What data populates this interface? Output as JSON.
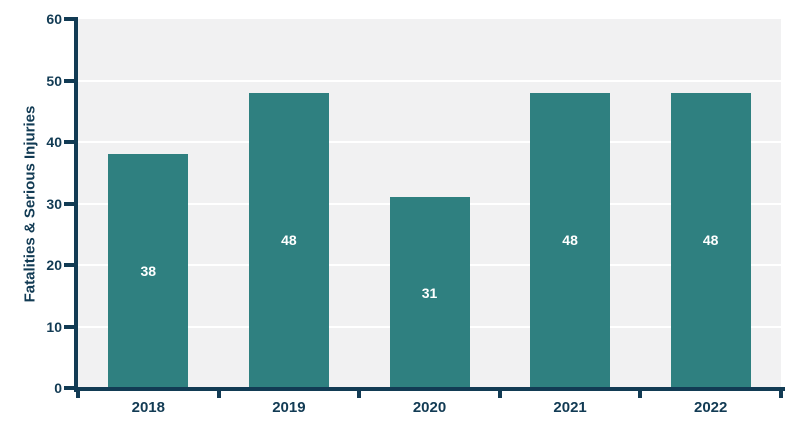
{
  "chart_data": {
    "type": "bar",
    "title": "",
    "categories": [
      "2018",
      "2019",
      "2020",
      "2021",
      "2022"
    ],
    "values": [
      38,
      48,
      31,
      48,
      48
    ],
    "bar_value_labels": [
      "38",
      "48",
      "31",
      "48",
      "48"
    ],
    "xlabel": "",
    "ylabel": "Fatalities & Serious Injuries",
    "ylim": [
      0,
      60
    ],
    "yticks": [
      0,
      10,
      20,
      30,
      40,
      50,
      60
    ],
    "gridlines": {
      "orientation": "horizontal",
      "at": [
        10,
        20,
        30,
        40,
        50
      ]
    },
    "legend": "none",
    "colors": {
      "bar": "#2f8080",
      "axis_and_text": "#123b54",
      "plot_background": "#f1f1f2",
      "gridline": "#ffffff",
      "value_label_text": "#ffffff",
      "page_background": "#ffffff"
    }
  }
}
